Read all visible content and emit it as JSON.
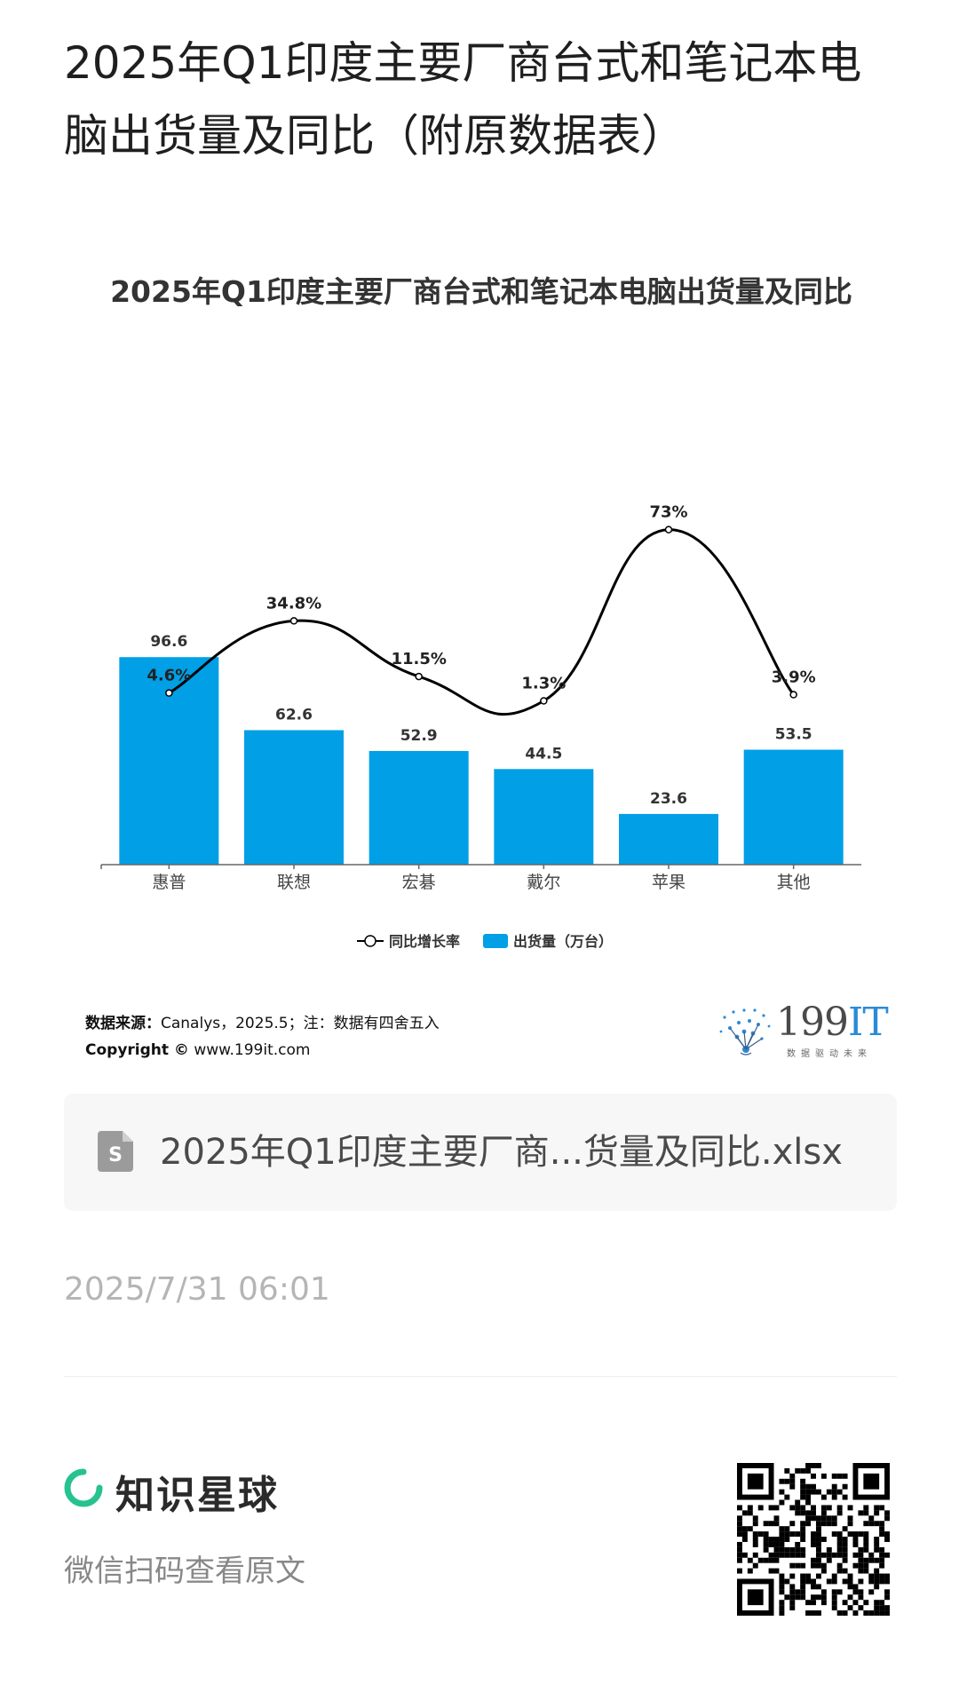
{
  "page_title": "2025年Q1印度主要厂商台式和笔记本电脑出货量及同比（附原数据表）",
  "chart_data": {
    "type": "bar",
    "title": "2025年Q1印度主要厂商台式和笔记本电脑出货量及同比",
    "categories": [
      "惠普",
      "联想",
      "宏碁",
      "戴尔",
      "苹果",
      "其他"
    ],
    "series": [
      {
        "name": "出货量（万台）",
        "type": "bar",
        "values": [
          96.6,
          62.6,
          52.9,
          44.5,
          23.6,
          53.5
        ],
        "labels": [
          "96.6",
          "62.6",
          "52.9",
          "44.5",
          "23.6",
          "53.5"
        ],
        "color": "#009fe6"
      },
      {
        "name": "同比增长率",
        "type": "line",
        "values": [
          4.6,
          34.8,
          11.5,
          1.3,
          73,
          3.9
        ],
        "labels": [
          "4.6%",
          "34.8%",
          "11.5%",
          "1.3%",
          "73%",
          "3.9%"
        ],
        "color": "#000000"
      }
    ],
    "legend_position": "bottom",
    "grid": false
  },
  "source": {
    "label": "数据来源：",
    "text": "Canalys，2025.5；注：数据有四舍五入",
    "copyright_label": "Copyright ©",
    "copyright_text": " www.199it.com"
  },
  "brand": {
    "name_num": "199",
    "name_it": "IT",
    "tagline": "数据驱动未来"
  },
  "attachment": {
    "file_name": "2025年Q1印度主要厂商...货量及同比.xlsx",
    "icon": "spreadsheet-file-icon"
  },
  "timestamp": "2025/7/31 06:01",
  "footer": {
    "app_name": "知识星球",
    "hint": "微信扫码查看原文"
  },
  "colors": {
    "bar": "#009fe6",
    "line": "#000000",
    "brand_green": "#26c28f"
  }
}
